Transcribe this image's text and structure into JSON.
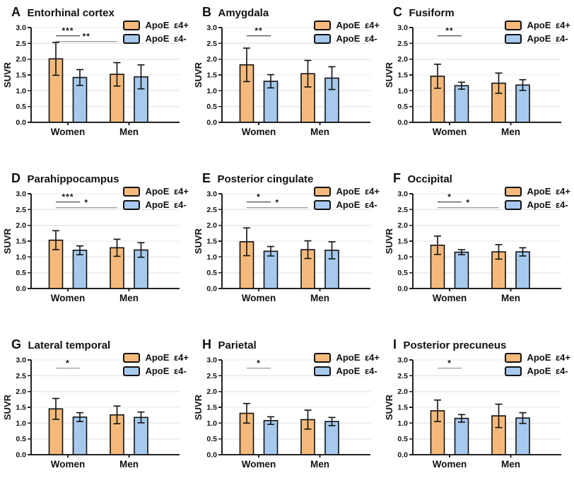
{
  "figure": {
    "ylabel": "SUVR",
    "ylim": [
      0,
      3
    ],
    "yticks": [
      "0.0",
      "0.5",
      "1.0",
      "1.5",
      "2.0",
      "2.5",
      "3.0"
    ],
    "categories": [
      "Women",
      "Men"
    ],
    "grid": true,
    "legend_position": "top-right",
    "legend": [
      {
        "name": "apoe-e4-positive",
        "label": "ApoE ε4+",
        "color": "#F5BA7B"
      },
      {
        "name": "apoe-e4-negative",
        "label": "ApoE ε4-",
        "color": "#A7C9EE"
      }
    ],
    "colors": {
      "bar_border": "#111111",
      "axis": "#222222",
      "gridline": "#e9e9e9",
      "error_bar": "#111111",
      "sig_dark": "#4a4a4a",
      "sig_light": "#9a9a9a",
      "text": "#111111",
      "background": "#ffffff"
    }
  },
  "chart_data": [
    {
      "panel": "A",
      "title": "Entorhinal cortex",
      "type": "bar",
      "categories": [
        "Women",
        "Men"
      ],
      "series": [
        {
          "name": "ApoE ε4+",
          "values": [
            2.01,
            1.52
          ],
          "errors": [
            0.52,
            0.37
          ]
        },
        {
          "name": "ApoE ε4-",
          "values": [
            1.42,
            1.44
          ],
          "errors": [
            0.25,
            0.38
          ]
        }
      ],
      "significance": [
        {
          "stars": "***",
          "bars": [
            0,
            1
          ],
          "y": 2.74,
          "shade": "dark"
        },
        {
          "stars": "**",
          "bars": [
            0,
            2
          ],
          "y": 2.56,
          "shade": "light"
        }
      ]
    },
    {
      "panel": "B",
      "title": "Amygdala",
      "type": "bar",
      "categories": [
        "Women",
        "Men"
      ],
      "series": [
        {
          "name": "ApoE ε4+",
          "values": [
            1.82,
            1.54
          ],
          "errors": [
            0.53,
            0.42
          ]
        },
        {
          "name": "ApoE ε4-",
          "values": [
            1.3,
            1.4
          ],
          "errors": [
            0.21,
            0.36
          ]
        }
      ],
      "significance": [
        {
          "stars": "**",
          "bars": [
            0,
            1
          ],
          "y": 2.74,
          "shade": "dark"
        }
      ]
    },
    {
      "panel": "C",
      "title": "Fusiform",
      "type": "bar",
      "categories": [
        "Women",
        "Men"
      ],
      "series": [
        {
          "name": "ApoE ε4+",
          "values": [
            1.46,
            1.24
          ],
          "errors": [
            0.38,
            0.32
          ]
        },
        {
          "name": "ApoE ε4-",
          "values": [
            1.16,
            1.18
          ],
          "errors": [
            0.11,
            0.17
          ]
        }
      ],
      "significance": [
        {
          "stars": "**",
          "bars": [
            0,
            1
          ],
          "y": 2.74,
          "shade": "dark"
        }
      ]
    },
    {
      "panel": "D",
      "title": "Parahippocampus",
      "type": "bar",
      "categories": [
        "Women",
        "Men"
      ],
      "series": [
        {
          "name": "ApoE ε4+",
          "values": [
            1.53,
            1.29
          ],
          "errors": [
            0.3,
            0.27
          ]
        },
        {
          "name": "ApoE ε4-",
          "values": [
            1.21,
            1.22
          ],
          "errors": [
            0.14,
            0.23
          ]
        }
      ],
      "significance": [
        {
          "stars": "***",
          "bars": [
            0,
            1
          ],
          "y": 2.74,
          "shade": "dark"
        },
        {
          "stars": "*",
          "bars": [
            0,
            2
          ],
          "y": 2.56,
          "shade": "light"
        }
      ]
    },
    {
      "panel": "E",
      "title": "Posterior cingulate",
      "type": "bar",
      "categories": [
        "Women",
        "Men"
      ],
      "series": [
        {
          "name": "ApoE ε4+",
          "values": [
            1.48,
            1.23
          ],
          "errors": [
            0.44,
            0.28
          ]
        },
        {
          "name": "ApoE ε4-",
          "values": [
            1.18,
            1.21
          ],
          "errors": [
            0.15,
            0.27
          ]
        }
      ],
      "significance": [
        {
          "stars": "*",
          "bars": [
            0,
            1
          ],
          "y": 2.74,
          "shade": "dark"
        },
        {
          "stars": "*",
          "bars": [
            0,
            2
          ],
          "y": 2.56,
          "shade": "light"
        }
      ]
    },
    {
      "panel": "F",
      "title": "Occipital",
      "type": "bar",
      "categories": [
        "Women",
        "Men"
      ],
      "series": [
        {
          "name": "ApoE ε4+",
          "values": [
            1.37,
            1.16
          ],
          "errors": [
            0.29,
            0.23
          ]
        },
        {
          "name": "ApoE ε4-",
          "values": [
            1.15,
            1.16
          ],
          "errors": [
            0.08,
            0.13
          ]
        }
      ],
      "significance": [
        {
          "stars": "*",
          "bars": [
            0,
            1
          ],
          "y": 2.74,
          "shade": "dark"
        },
        {
          "stars": "*",
          "bars": [
            0,
            2
          ],
          "y": 2.56,
          "shade": "light"
        }
      ]
    },
    {
      "panel": "G",
      "title": "Lateral temporal",
      "type": "bar",
      "categories": [
        "Women",
        "Men"
      ],
      "series": [
        {
          "name": "ApoE ε4+",
          "values": [
            1.45,
            1.26
          ],
          "errors": [
            0.33,
            0.28
          ]
        },
        {
          "name": "ApoE ε4-",
          "values": [
            1.19,
            1.18
          ],
          "errors": [
            0.14,
            0.17
          ]
        }
      ],
      "significance": [
        {
          "stars": "*",
          "bars": [
            0,
            1
          ],
          "y": 2.74,
          "shade": "light"
        }
      ]
    },
    {
      "panel": "H",
      "title": "Parietal",
      "type": "bar",
      "categories": [
        "Women",
        "Men"
      ],
      "series": [
        {
          "name": "ApoE ε4+",
          "values": [
            1.31,
            1.11
          ],
          "errors": [
            0.31,
            0.3
          ]
        },
        {
          "name": "ApoE ε4-",
          "values": [
            1.08,
            1.05
          ],
          "errors": [
            0.12,
            0.13
          ]
        }
      ],
      "significance": [
        {
          "stars": "*",
          "bars": [
            0,
            1
          ],
          "y": 2.74,
          "shade": "light"
        }
      ]
    },
    {
      "panel": "I",
      "title": "Posterior precuneus",
      "type": "bar",
      "categories": [
        "Women",
        "Men"
      ],
      "series": [
        {
          "name": "ApoE ε4+",
          "values": [
            1.39,
            1.23
          ],
          "errors": [
            0.34,
            0.37
          ]
        },
        {
          "name": "ApoE ε4-",
          "values": [
            1.15,
            1.16
          ],
          "errors": [
            0.12,
            0.17
          ]
        }
      ],
      "significance": [
        {
          "stars": "*",
          "bars": [
            0,
            1
          ],
          "y": 2.74,
          "shade": "light"
        }
      ]
    }
  ]
}
